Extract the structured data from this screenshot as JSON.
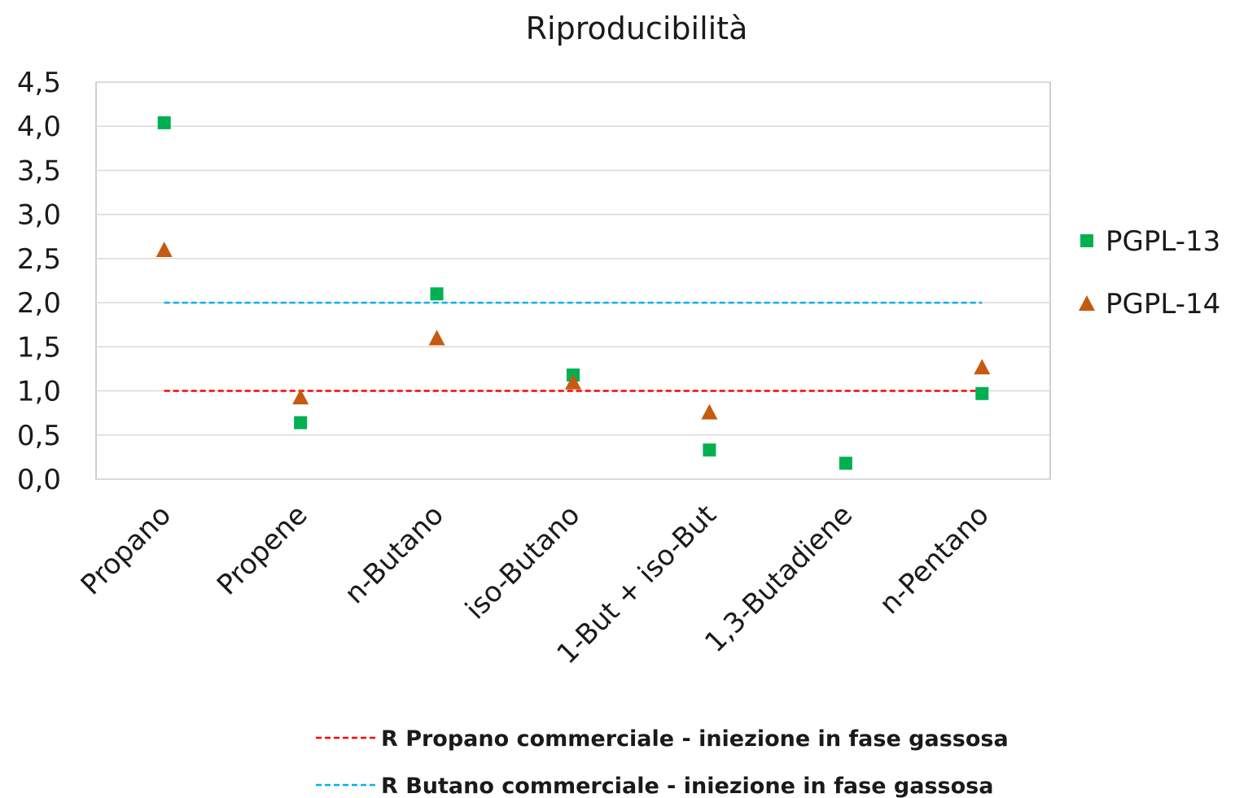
{
  "chart_data": {
    "type": "scatter",
    "title": "Riproducibilità",
    "categories": [
      "Propano",
      "Propene",
      "n-Butano",
      "iso-Butano",
      "1-But + iso-But",
      "1,3-Butadiene",
      "n-Pentano"
    ],
    "series": [
      {
        "name": "PGPL-13",
        "marker": "square",
        "color": "#00b050",
        "values": [
          4.04,
          0.64,
          2.1,
          1.18,
          0.33,
          0.18,
          0.97
        ]
      },
      {
        "name": "PGPL-14",
        "marker": "triangle",
        "color": "#c55a11",
        "values": [
          2.6,
          0.93,
          1.6,
          1.1,
          0.76,
          null,
          1.27
        ]
      }
    ],
    "reference_lines": [
      {
        "label": "R Propano commerciale  - iniezione in  fase gassosa",
        "value": 1.0,
        "color": "#ff0000",
        "style": "dashed"
      },
      {
        "label": "R Butano commerciale  - iniezione in  fase gassosa",
        "value": 2.0,
        "color": "#00b0f0",
        "style": "dashed"
      }
    ],
    "ylim": [
      0,
      4.5
    ],
    "yticks": [
      "0,0",
      "0,5",
      "1,0",
      "1,5",
      "2,0",
      "2,5",
      "3,0",
      "3,5",
      "4,0",
      "4,5"
    ],
    "xlabel": "",
    "ylabel": "",
    "grid": true,
    "legend": "right"
  }
}
